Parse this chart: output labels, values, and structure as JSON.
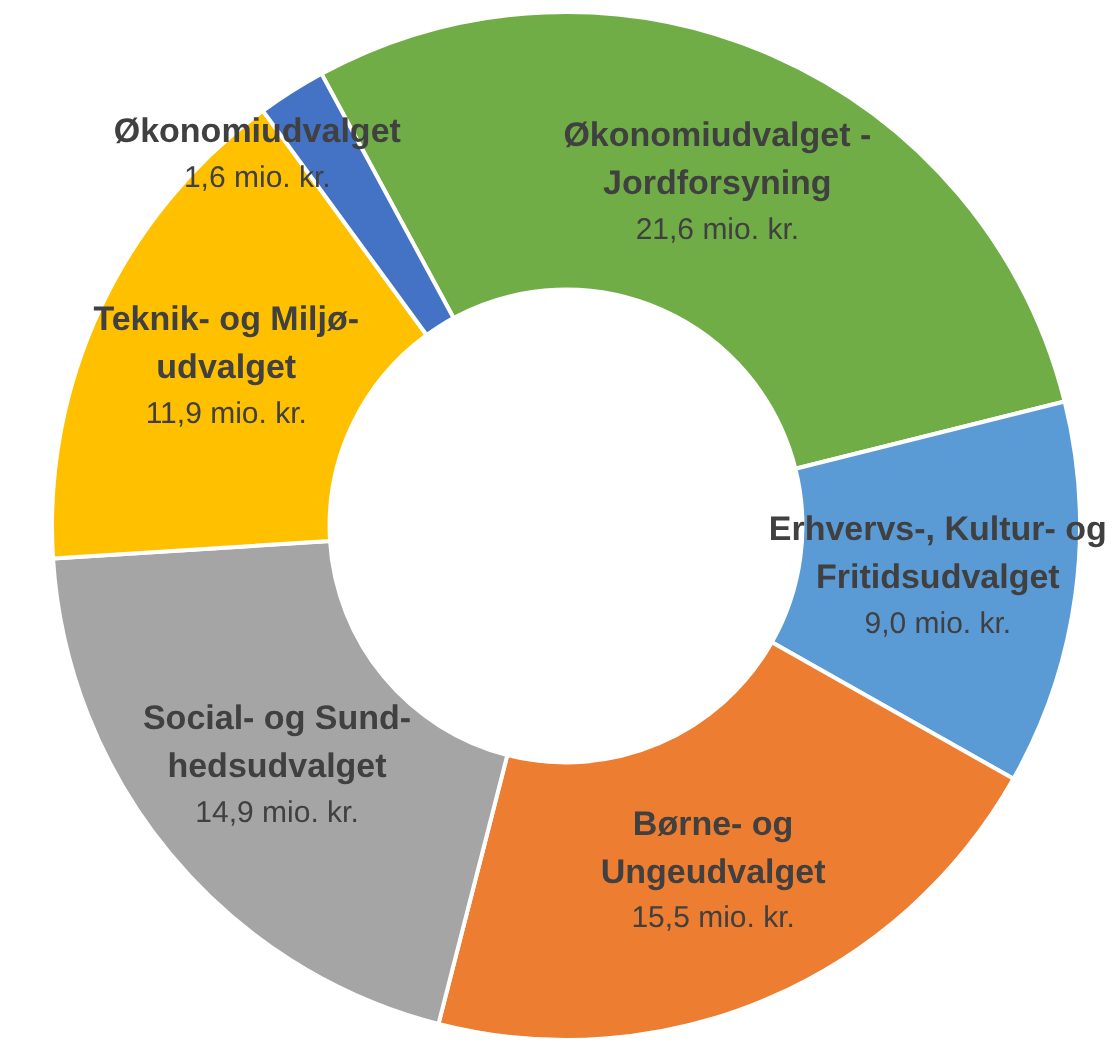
{
  "chart_data": {
    "type": "donut",
    "categories": [
      "Økonomiudvalget - Jordforsyning",
      "Erhvervs-, Kultur- og Fritidsudvalget",
      "Børne- og Ungeudvalget",
      "Social- og Sund-hedsudvalget",
      "Teknik- og Miljø-udvalget",
      "Økonomiudvalget"
    ],
    "values": [
      21.6,
      9.0,
      15.5,
      14.9,
      11.9,
      1.6
    ],
    "colors": [
      "#70ad47",
      "#5b9bd5",
      "#ed7d31",
      "#a5a5a5",
      "#ffc000",
      "#4472c4"
    ],
    "value_labels": [
      "21,6 mio. kr.",
      "9,0 mio. kr.",
      "15,5 mio. kr.",
      "14,9 mio. kr.",
      "11,9 mio. kr.",
      "1,6 mio. kr."
    ]
  }
}
